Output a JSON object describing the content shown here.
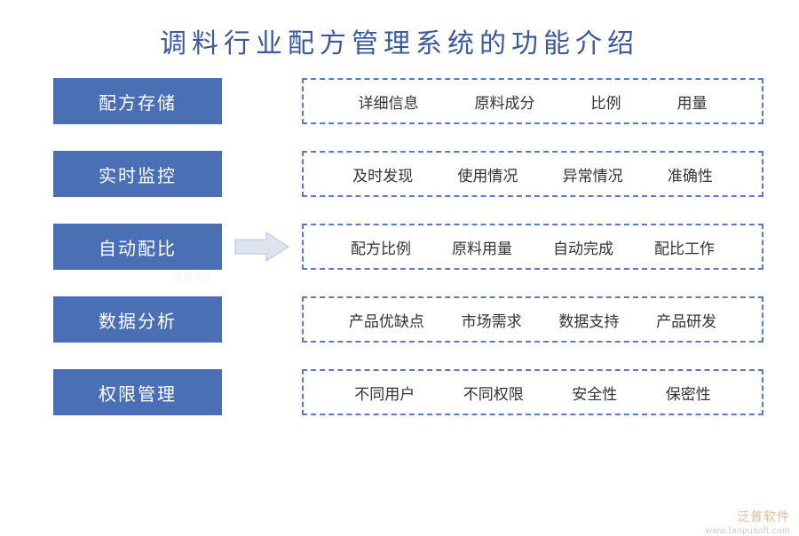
{
  "title": "调料行业配方管理系统的功能介绍",
  "title_color": "#3c5a9a",
  "title_fontsize": 30,
  "category_bg": "#4a6fb5",
  "category_text_color": "#ffffff",
  "detail_border_color": "#5b7bc0",
  "detail_text_color": "#333333",
  "background_color": "#ffffff",
  "arrow_fill": "#dde4ee",
  "arrow_stroke": "#b8c5db",
  "rows": [
    {
      "category": "配方存储",
      "details": [
        "详细信息",
        "原料成分",
        "比例",
        "用量"
      ],
      "has_arrow": false
    },
    {
      "category": "实时监控",
      "details": [
        "及时发现",
        "使用情况",
        "异常情况",
        "准确性"
      ],
      "has_arrow": false
    },
    {
      "category": "自动配比",
      "details": [
        "配方比例",
        "原料用量",
        "自动完成",
        "配比工作"
      ],
      "has_arrow": true
    },
    {
      "category": "数据分析",
      "details": [
        "产品优缺点",
        "市场需求",
        "数据支持",
        "产品研发"
      ],
      "has_arrow": false
    },
    {
      "category": "权限管理",
      "details": [
        "不同用户",
        "不同权限",
        "安全性",
        "保密性"
      ],
      "has_arrow": false
    }
  ],
  "watermark": {
    "brand": "泛普软件",
    "url": "www.fanpusoft.com"
  },
  "faint_watermark": "泛普软件"
}
